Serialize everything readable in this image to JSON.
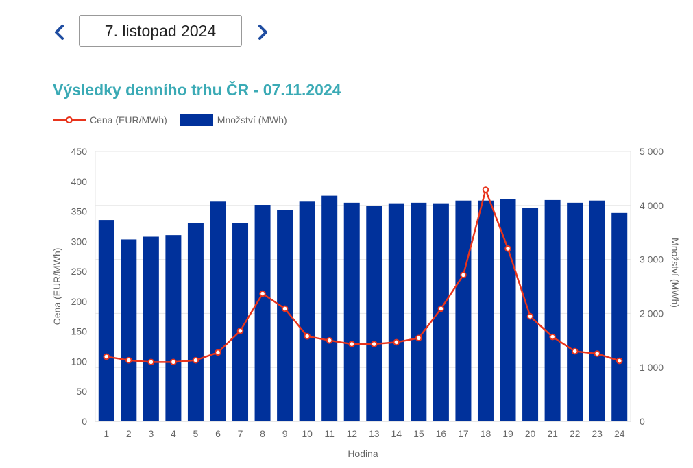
{
  "nav": {
    "prev_icon": "chevron-left-icon",
    "next_icon": "chevron-right-icon",
    "date_label": "7. listopad 2024"
  },
  "colors": {
    "bar": "#00319b",
    "line": "#e8341c",
    "title": "#3aaab5",
    "nav": "#1f4da1"
  },
  "chart_data": {
    "type": "bar",
    "title": "Výsledky denního trhu ČR - 07.11.2024",
    "xlabel": "Hodina",
    "ylabel_left": "Cena (EUR/MWh)",
    "ylabel_right": "Množství (MWh)",
    "categories": [
      "1",
      "2",
      "3",
      "4",
      "5",
      "6",
      "7",
      "8",
      "9",
      "10",
      "11",
      "12",
      "13",
      "14",
      "15",
      "16",
      "17",
      "18",
      "19",
      "20",
      "21",
      "22",
      "23",
      "24"
    ],
    "ylim_left": [
      0,
      450
    ],
    "yticks_left": [
      "0",
      "50",
      "100",
      "150",
      "200",
      "250",
      "300",
      "350",
      "400",
      "450"
    ],
    "ylim_right": [
      0,
      5000
    ],
    "yticks_right": [
      "0",
      "1 000",
      "2 000",
      "3 000",
      "4 000",
      "5 000"
    ],
    "grid": true,
    "legend_position": "top-left",
    "series": [
      {
        "name": "Cena (EUR/MWh)",
        "type": "line",
        "axis": "left",
        "values": [
          108,
          102,
          99,
          99,
          102,
          115,
          151,
          213,
          188,
          142,
          135,
          129,
          129,
          132,
          139,
          188,
          244,
          386,
          288,
          175,
          141,
          117,
          113,
          101
        ]
      },
      {
        "name": "Množství (MWh)",
        "type": "bar",
        "axis": "right",
        "values": [
          3730,
          3370,
          3420,
          3450,
          3680,
          4070,
          3680,
          4010,
          3920,
          4070,
          4180,
          4050,
          3990,
          4040,
          4050,
          4040,
          4090,
          4090,
          4120,
          3950,
          4100,
          4050,
          4090,
          3860
        ]
      }
    ]
  }
}
